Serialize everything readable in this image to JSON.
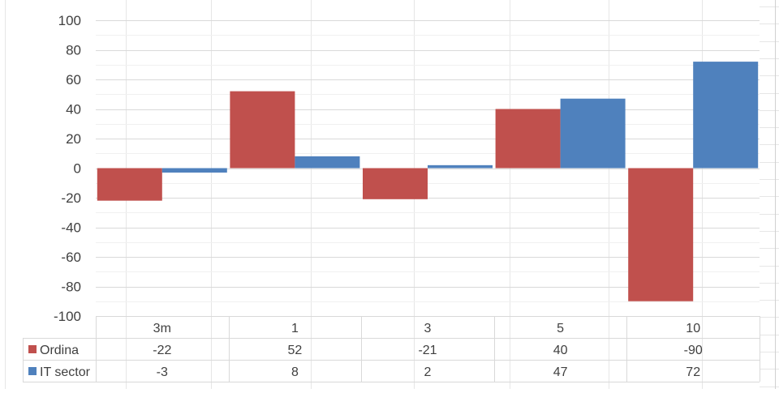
{
  "chart_data": {
    "type": "bar",
    "categories": [
      "3m",
      "1",
      "3",
      "5",
      "10"
    ],
    "series": [
      {
        "name": "Ordina",
        "color": "#C0504D",
        "values": [
          -22,
          52,
          -21,
          40,
          -90
        ]
      },
      {
        "name": "IT sector",
        "color": "#4F81BD",
        "values": [
          -3,
          8,
          2,
          47,
          72
        ]
      }
    ],
    "ylim": [
      -100,
      100
    ],
    "ytick_step": 20,
    "grid": true,
    "data_table": true,
    "title": "",
    "xlabel": "",
    "ylabel": ""
  }
}
